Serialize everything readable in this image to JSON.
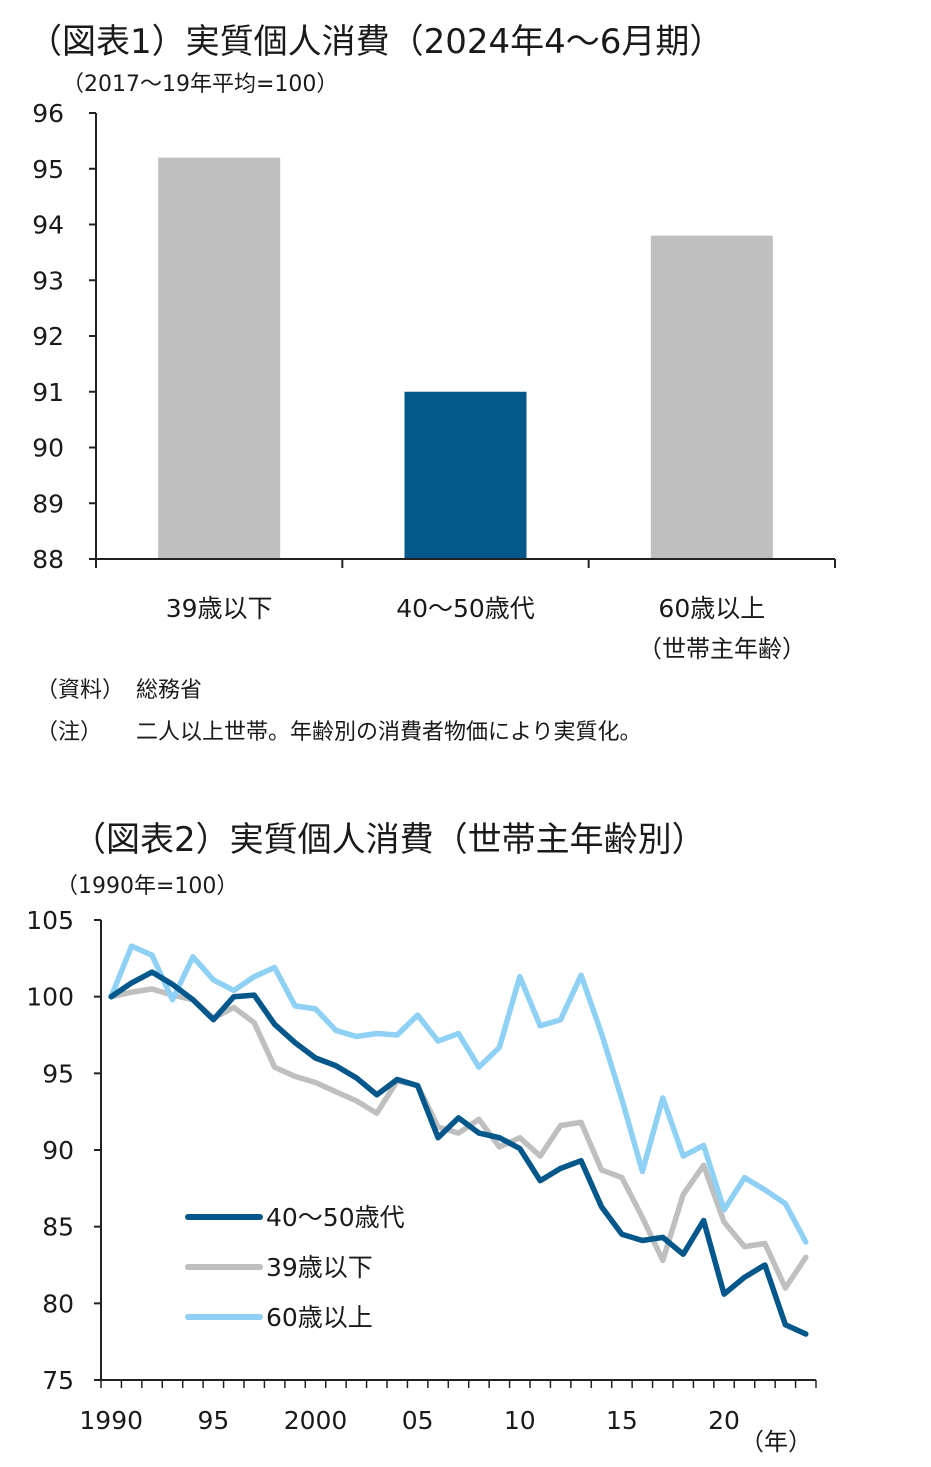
{
  "chart1": {
    "title": "（図表1）実質個人消費（2024年4～6月期）",
    "unit": "（2017～19年平均=100）",
    "source_label": "（資料）",
    "source_text": "総務省",
    "note_label": "（注）",
    "note_text": "二人以上世帯。年齢別の消費者物価により実質化。",
    "sub_label": "（世帯主年齢）"
  },
  "chart2": {
    "title": "（図表2）実質個人消費（世帯主年齢別）",
    "unit": "（1990年=100）",
    "x_unit": "（年）"
  },
  "colors": {
    "gray": "#bfbfbf",
    "navy": "#03578a",
    "lightblue": "#8fd0f5",
    "axis": "#222222"
  },
  "chart_data": [
    {
      "type": "bar",
      "title": "（図表1）実質個人消費（2024年4～6月期）",
      "ylabel": "（2017～19年平均=100）",
      "categories": [
        "39歳以下",
        "40～50歳代",
        "60歳以上"
      ],
      "values": [
        95.2,
        91.0,
        93.8
      ],
      "highlight_index": 1,
      "ylim": [
        88,
        96
      ],
      "yticks": [
        88,
        89,
        90,
        91,
        92,
        93,
        94,
        95,
        96
      ],
      "grid": false
    },
    {
      "type": "line",
      "title": "（図表2）実質個人消費（世帯主年齢別）",
      "ylabel": "（1990年=100）",
      "xlabel": "（年）",
      "ylim": [
        75,
        105
      ],
      "yticks": [
        75,
        80,
        85,
        90,
        95,
        100,
        105
      ],
      "xlim": [
        1989.5,
        2024.5
      ],
      "xticks": [
        {
          "value": 1990,
          "label": "1990"
        },
        {
          "value": 1995,
          "label": "95"
        },
        {
          "value": 2000,
          "label": "2000"
        },
        {
          "value": 2005,
          "label": "05"
        },
        {
          "value": 2010,
          "label": "10"
        },
        {
          "value": 2015,
          "label": "15"
        },
        {
          "value": 2020,
          "label": "20"
        }
      ],
      "x": [
        1990,
        1991,
        1992,
        1993,
        1994,
        1995,
        1996,
        1997,
        1998,
        1999,
        2000,
        2001,
        2002,
        2003,
        2004,
        2005,
        2006,
        2007,
        2008,
        2009,
        2010,
        2011,
        2012,
        2013,
        2014,
        2015,
        2016,
        2017,
        2018,
        2019,
        2020,
        2021,
        2022,
        2023,
        2024
      ],
      "series": [
        {
          "name": "40～50歳代",
          "color": "#03578a",
          "values": [
            100.0,
            100.9,
            101.6,
            100.8,
            99.8,
            98.5,
            100.0,
            100.1,
            98.2,
            97.0,
            96.0,
            95.5,
            94.7,
            93.6,
            94.6,
            94.2,
            90.8,
            92.1,
            91.1,
            90.8,
            90.1,
            88.0,
            88.8,
            89.3,
            86.3,
            84.5,
            84.1,
            84.3,
            83.2,
            85.4,
            80.6,
            81.7,
            82.5,
            78.6,
            78.0
          ]
        },
        {
          "name": "39歳以下",
          "color": "#bfbfbf",
          "values": [
            100.0,
            100.3,
            100.5,
            100.1,
            99.8,
            98.6,
            99.3,
            98.3,
            95.4,
            94.8,
            94.4,
            93.8,
            93.2,
            92.4,
            94.5,
            94.2,
            91.5,
            91.1,
            92.0,
            90.2,
            90.8,
            89.6,
            91.6,
            91.8,
            88.7,
            88.2,
            85.6,
            82.8,
            87.1,
            89.0,
            85.3,
            83.7,
            83.9,
            81.0,
            83.0
          ]
        },
        {
          "name": "60歳以上",
          "color": "#8fd0f5",
          "values": [
            100.0,
            103.3,
            102.7,
            99.8,
            102.6,
            101.1,
            100.4,
            101.3,
            101.9,
            99.4,
            99.2,
            97.8,
            97.4,
            97.6,
            97.5,
            98.8,
            97.1,
            97.6,
            95.4,
            96.7,
            101.3,
            98.1,
            98.5,
            101.4,
            97.6,
            93.3,
            88.6,
            93.4,
            89.6,
            90.3,
            86.1,
            88.2,
            87.4,
            86.5,
            84.0
          ]
        }
      ],
      "legend": "inside-bottom-left",
      "grid": false
    }
  ]
}
